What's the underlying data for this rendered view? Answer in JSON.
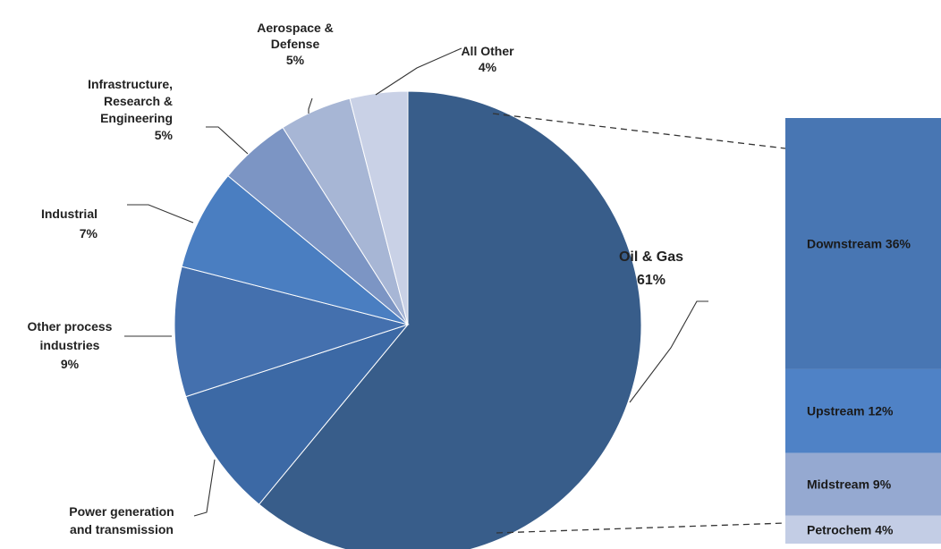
{
  "chart_data": [
    {
      "type": "pie",
      "slices": [
        {
          "label": "Oil & Gas",
          "value": 61,
          "color": "#385d8a"
        },
        {
          "label": "Power generation and transmission",
          "value": 9,
          "color": "#3c69a5"
        },
        {
          "label": "Other process industries",
          "value": 9,
          "color": "#4470ae"
        },
        {
          "label": "Industrial",
          "value": 7,
          "color": "#4a7ec1"
        },
        {
          "label": "Infrastructure, Research & Engineering",
          "value": 5,
          "color": "#7c95c4"
        },
        {
          "label": "Aerospace & Defense",
          "value": 5,
          "color": "#a7b6d5"
        },
        {
          "label": "All Other",
          "value": 4,
          "color": "#c9d1e6"
        }
      ],
      "labels": {
        "oil_gas": [
          "Oil & Gas",
          "61%"
        ],
        "power": [
          "Power generation",
          "and transmission"
        ],
        "other_process": [
          "Other process",
          "industries",
          "9%"
        ],
        "industrial": [
          "Industrial",
          "7%"
        ],
        "infrastructure": [
          "Infrastructure,",
          "Research &",
          "Engineering",
          "5%"
        ],
        "aerospace": [
          "Aerospace &",
          "Defense",
          "5%"
        ],
        "all_other": [
          "All Other",
          "4%"
        ]
      }
    },
    {
      "type": "bar",
      "stacked": true,
      "segments": [
        {
          "label": "Downstream 36%",
          "value": 36,
          "color": "#4876b3"
        },
        {
          "label": "Upstream 12%",
          "value": 12,
          "color": "#4f82c6"
        },
        {
          "label": "Midstream 9%",
          "value": 9,
          "color": "#95a9d1"
        },
        {
          "label": "Petrochem 4%",
          "value": 4,
          "color": "#c3cde5"
        }
      ]
    }
  ]
}
